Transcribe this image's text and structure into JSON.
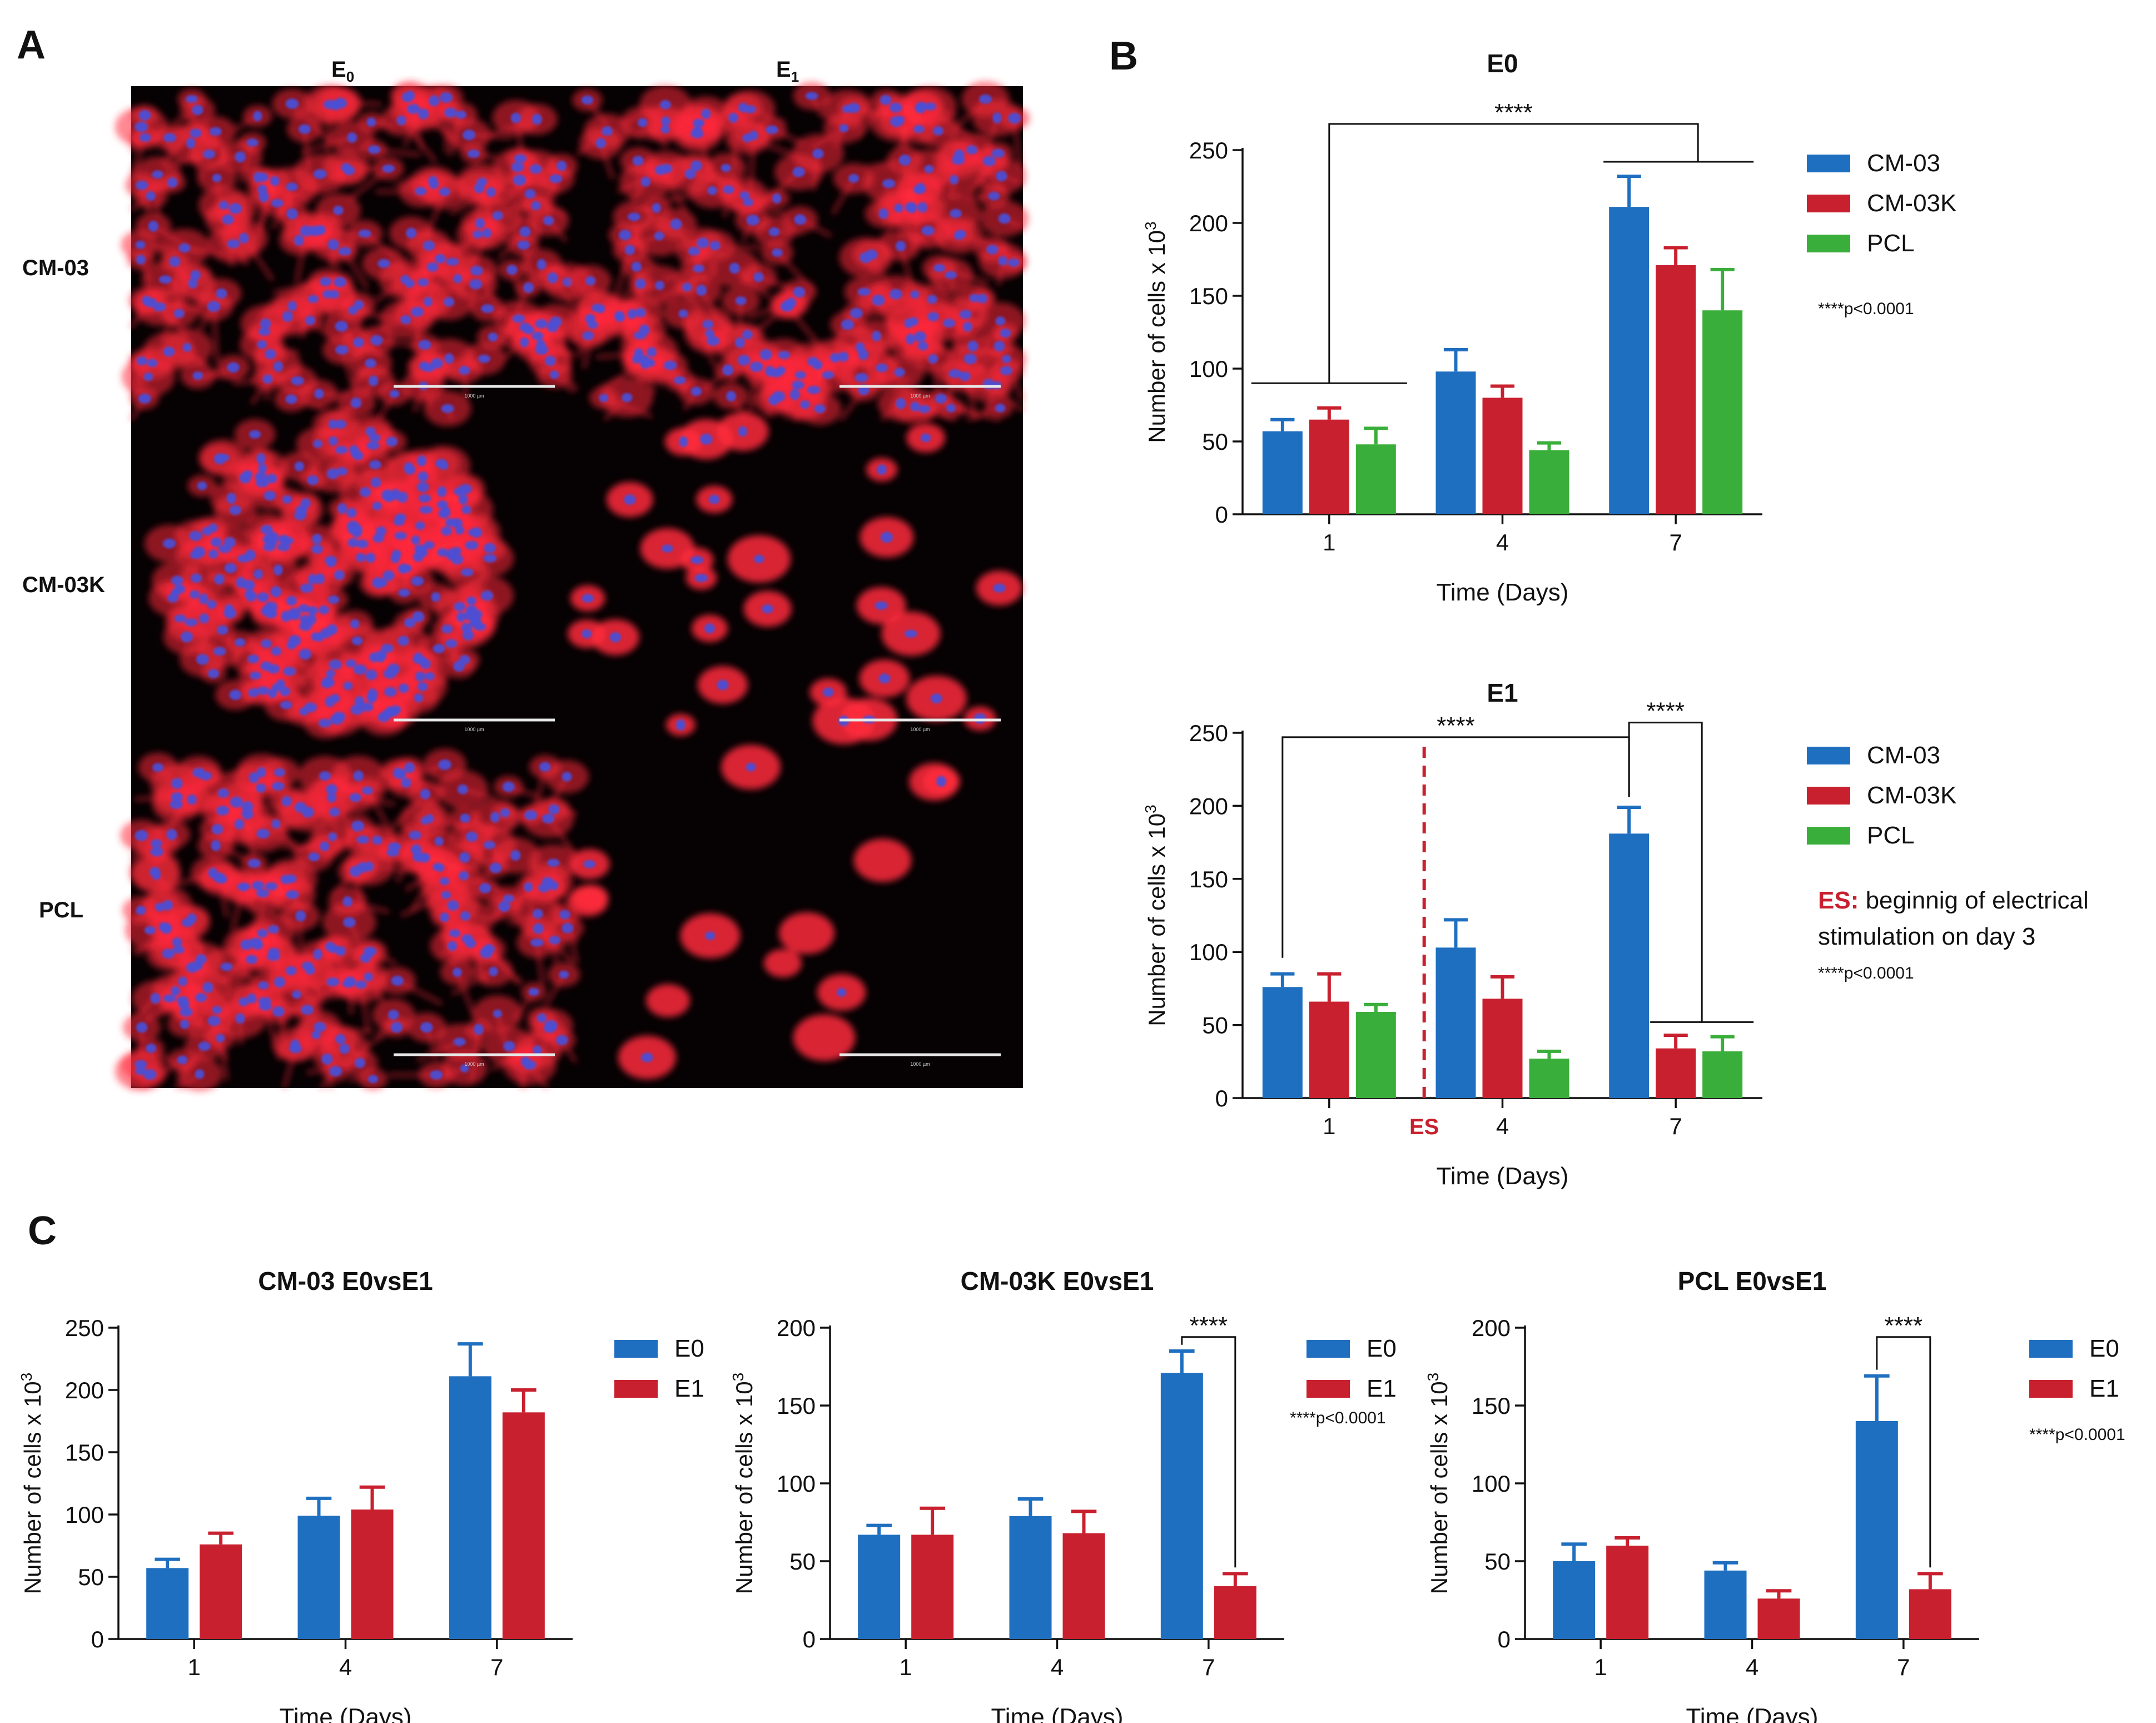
{
  "panels": {
    "A": "A",
    "B": "B",
    "C": "C"
  },
  "microscopy": {
    "col_labels": [
      {
        "base": "E",
        "sub": "0"
      },
      {
        "base": "E",
        "sub": "1"
      }
    ],
    "row_labels": [
      "CM-03",
      "CM-03K",
      "PCL"
    ],
    "scale_text": "1000 µm",
    "colors": {
      "cytoskeleton": "#ff2a3c",
      "nuclei": "#4a4fd6",
      "background": "#060203"
    }
  },
  "colors": {
    "blue": "#1f6fc0",
    "red": "#c8202e",
    "green": "#3aae3a",
    "es_line": "#c8202e"
  },
  "chart_data": [
    {
      "id": "B_E0",
      "type": "bar",
      "title": "E0",
      "xlabel": "Time (Days)",
      "ylabel": "Number of cells x 10",
      "ylabel_sup": "3",
      "ylim": [
        0,
        250
      ],
      "yticks": [
        "0",
        "50",
        "100",
        "150",
        "200",
        "250"
      ],
      "categories": [
        "1",
        "4",
        "7"
      ],
      "series": [
        {
          "name": "CM-03",
          "color": "#1f6fc0",
          "values": [
            57,
            98,
            211
          ],
          "errors": [
            8,
            15,
            21
          ]
        },
        {
          "name": "CM-03K",
          "color": "#c8202e",
          "values": [
            65,
            80,
            171
          ],
          "errors": [
            8,
            8,
            12
          ]
        },
        {
          "name": "PCL",
          "color": "#3aae3a",
          "values": [
            48,
            44,
            140
          ],
          "errors": [
            11,
            5,
            28
          ]
        }
      ],
      "annotations": [
        {
          "text": "****",
          "between": [
            "day 1",
            "day 7"
          ]
        }
      ],
      "note": "****p<0.0001"
    },
    {
      "id": "B_E1",
      "type": "bar",
      "title": "E1",
      "xlabel": "Time (Days)",
      "ylabel": "Number of cells x 10",
      "ylabel_sup": "3",
      "ylim": [
        0,
        250
      ],
      "yticks": [
        "0",
        "50",
        "100",
        "150",
        "200",
        "250"
      ],
      "categories": [
        "1",
        "4",
        "7"
      ],
      "series": [
        {
          "name": "CM-03",
          "color": "#1f6fc0",
          "values": [
            76,
            103,
            181
          ],
          "errors": [
            9,
            19,
            18
          ]
        },
        {
          "name": "CM-03K",
          "color": "#c8202e",
          "values": [
            66,
            68,
            34
          ],
          "errors": [
            19,
            15,
            9
          ]
        },
        {
          "name": "PCL",
          "color": "#3aae3a",
          "values": [
            59,
            27,
            32
          ],
          "errors": [
            5,
            5,
            10
          ]
        }
      ],
      "es_marker": {
        "label": "ES",
        "day": 3
      },
      "annotations": [
        {
          "text": "****",
          "between": [
            "day 1",
            "day 7"
          ]
        },
        {
          "text": "****",
          "between": [
            "CM-03 day 7",
            "day 7 others"
          ]
        }
      ],
      "legend_note": {
        "key": "ES:",
        "line1": " beginnig of electrical",
        "line2": "stimulation on day 3"
      },
      "note": "****p<0.0001"
    },
    {
      "id": "C_CM03",
      "type": "bar",
      "title": "CM-03 E0vsE1",
      "xlabel": "Time (Days)",
      "ylabel": "Number of cells x 10",
      "ylabel_sup": "3",
      "ylim": [
        0,
        250
      ],
      "yticks": [
        "0",
        "50",
        "100",
        "150",
        "200",
        "250"
      ],
      "categories": [
        "1",
        "4",
        "7"
      ],
      "series": [
        {
          "name": "E0",
          "color": "#1f6fc0",
          "values": [
            57,
            99,
            211
          ],
          "errors": [
            7,
            14,
            26
          ]
        },
        {
          "name": "E1",
          "color": "#c8202e",
          "values": [
            76,
            104,
            182
          ],
          "errors": [
            9,
            18,
            18
          ]
        }
      ]
    },
    {
      "id": "C_CM03K",
      "type": "bar",
      "title": "CM-03K E0vsE1",
      "xlabel": "Time (Days)",
      "ylabel": "Number of cells x 10",
      "ylabel_sup": "3",
      "ylim": [
        0,
        200
      ],
      "yticks": [
        "0",
        "50",
        "100",
        "150",
        "200"
      ],
      "categories": [
        "1",
        "4",
        "7"
      ],
      "series": [
        {
          "name": "E0",
          "color": "#1f6fc0",
          "values": [
            67,
            79,
            171
          ],
          "errors": [
            6,
            11,
            14
          ]
        },
        {
          "name": "E1",
          "color": "#c8202e",
          "values": [
            67,
            68,
            34
          ],
          "errors": [
            17,
            14,
            8
          ]
        }
      ],
      "annotations": [
        {
          "text": "****",
          "between": [
            "E0 day 7",
            "E1 day 7"
          ]
        }
      ],
      "note": "****p<0.0001"
    },
    {
      "id": "C_PCL",
      "type": "bar",
      "title": "PCL E0vsE1",
      "xlabel": "Time (Days)",
      "ylabel": "Number of cells x 10",
      "ylabel_sup": "3",
      "ylim": [
        0,
        200
      ],
      "yticks": [
        "0",
        "50",
        "100",
        "150",
        "200"
      ],
      "categories": [
        "1",
        "4",
        "7"
      ],
      "series": [
        {
          "name": "E0",
          "color": "#1f6fc0",
          "values": [
            50,
            44,
            140
          ],
          "errors": [
            11,
            5,
            29
          ]
        },
        {
          "name": "E1",
          "color": "#c8202e",
          "values": [
            60,
            26,
            32
          ],
          "errors": [
            5,
            5,
            10
          ]
        }
      ],
      "annotations": [
        {
          "text": "****",
          "between": [
            "E0 day 7",
            "E1 day 7"
          ]
        }
      ],
      "note": "****p<0.0001"
    }
  ]
}
